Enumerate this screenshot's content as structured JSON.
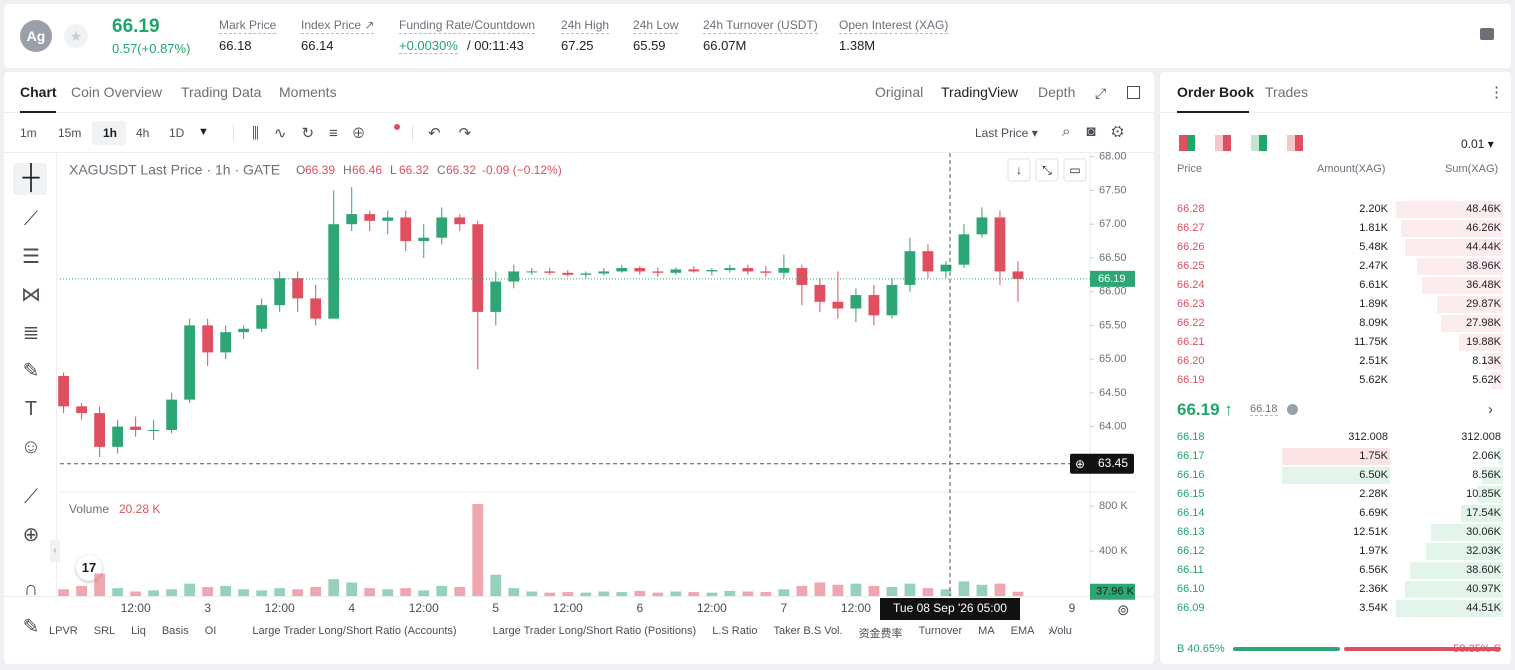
{
  "header": {
    "symbol": "Ag",
    "price": "66.19",
    "change": "0.57(+0.87%)",
    "stats": [
      {
        "label": "Mark Price",
        "value": "66.18"
      },
      {
        "label": "Index Price",
        "value": "66.14"
      },
      {
        "label": "Funding Rate/Countdown",
        "value": "+0.0030%",
        "extra": "/ 00:11:43"
      },
      {
        "label": "24h High",
        "value": "67.25"
      },
      {
        "label": "24h Low",
        "value": "65.59"
      },
      {
        "label": "24h Turnover (USDT)",
        "value": "66.07M"
      },
      {
        "label": "Open Interest (XAG)",
        "value": "1.38M"
      }
    ]
  },
  "tabs": [
    "Chart",
    "Coin Overview",
    "Trading Data",
    "Moments"
  ],
  "view_tabs": [
    "Original",
    "TradingView",
    "Depth"
  ],
  "toolbar": {
    "intervals": [
      "1m",
      "15m",
      "1h",
      "4h",
      "1D"
    ],
    "price_type": "Last Price"
  },
  "indicators": [
    "LPVR",
    "SRL",
    "Liq",
    "Basis",
    "OI",
    "Large Trader Long/Short Ratio (Accounts)",
    "Large Trader Long/Short Ratio (Positions)",
    "L.S Ratio",
    "Taker B.S Vol.",
    "资金费率",
    "Turnover",
    "MA",
    "EMA",
    "Volu"
  ],
  "chart_data": {
    "type": "candlestick",
    "title": "XAGUSDT Last Price · 1h · GATE",
    "legend": [
      {
        "key": "O",
        "value": "66.39"
      },
      {
        "key": "H",
        "value": "66.46"
      },
      {
        "key": "L",
        "value": "66.32"
      },
      {
        "key": "C",
        "value": "66.32"
      }
    ],
    "legend_change": "-0.09 (−0.12%)",
    "up_color": "#2ea574",
    "down_color": "#e04f5f",
    "open": [
      64.75,
      64.3,
      64.2,
      63.7,
      64.0,
      63.95,
      63.95,
      64.4,
      65.5,
      65.1,
      65.4,
      65.45,
      65.8,
      66.2,
      65.9,
      65.6,
      67.0,
      67.15,
      67.05,
      67.1,
      66.75,
      66.8,
      67.1,
      67.0,
      65.7,
      66.15,
      66.3,
      66.3,
      66.28,
      66.25,
      66.27,
      66.3,
      66.35,
      66.3,
      66.28,
      66.33,
      66.3,
      66.32,
      66.35,
      66.3,
      66.28,
      66.35,
      66.1,
      65.85,
      65.75,
      65.95,
      65.65,
      66.1,
      66.6,
      66.3,
      66.4,
      66.85,
      67.1,
      66.3
    ],
    "high": [
      64.8,
      64.35,
      64.3,
      64.1,
      64.15,
      64.1,
      64.5,
      65.6,
      65.6,
      65.5,
      65.5,
      65.9,
      66.3,
      66.3,
      66.1,
      67.5,
      67.55,
      67.2,
      67.2,
      67.2,
      67.0,
      67.25,
      67.15,
      67.05,
      66.3,
      66.4,
      66.35,
      66.35,
      66.32,
      66.3,
      66.35,
      66.4,
      66.38,
      66.36,
      66.36,
      66.38,
      66.35,
      66.4,
      66.4,
      66.38,
      66.55,
      66.4,
      66.2,
      66.3,
      66.05,
      66.1,
      66.2,
      66.8,
      66.7,
      66.45,
      67.0,
      67.25,
      67.2,
      66.45
    ],
    "low": [
      64.2,
      64.1,
      63.55,
      63.6,
      63.85,
      63.8,
      63.9,
      64.35,
      64.9,
      65.0,
      65.3,
      65.4,
      65.7,
      65.7,
      65.5,
      65.6,
      66.9,
      66.9,
      66.85,
      66.6,
      66.5,
      66.7,
      66.9,
      64.85,
      65.5,
      66.05,
      66.25,
      66.25,
      66.22,
      66.2,
      66.24,
      66.28,
      66.25,
      66.22,
      66.25,
      66.28,
      66.24,
      66.28,
      66.25,
      66.22,
      66.2,
      65.8,
      65.7,
      65.6,
      65.55,
      65.5,
      65.6,
      66.0,
      66.2,
      66.2,
      66.35,
      66.8,
      66.1,
      65.85
    ],
    "close": [
      64.3,
      64.2,
      63.7,
      64.0,
      63.95,
      63.95,
      64.4,
      65.5,
      65.1,
      65.4,
      65.45,
      65.8,
      66.2,
      65.9,
      65.6,
      67.0,
      67.15,
      67.05,
      67.1,
      66.75,
      66.8,
      67.1,
      67.0,
      65.7,
      66.15,
      66.3,
      66.3,
      66.28,
      66.25,
      66.27,
      66.3,
      66.35,
      66.3,
      66.28,
      66.33,
      66.3,
      66.32,
      66.35,
      66.3,
      66.28,
      66.35,
      66.1,
      65.85,
      65.75,
      65.95,
      65.65,
      66.1,
      66.6,
      66.3,
      66.4,
      66.85,
      67.1,
      66.3,
      66.19
    ],
    "volume": [
      60000,
      90000,
      200000,
      70000,
      40000,
      50000,
      60000,
      110000,
      80000,
      90000,
      60000,
      50000,
      70000,
      60000,
      80000,
      150000,
      120000,
      70000,
      60000,
      70000,
      50000,
      90000,
      80000,
      820000,
      190000,
      70000,
      40000,
      30000,
      35000,
      30000,
      40000,
      35000,
      45000,
      30000,
      40000,
      35000,
      30000,
      45000,
      40000,
      35000,
      60000,
      90000,
      120000,
      100000,
      110000,
      90000,
      80000,
      110000,
      70000,
      60000,
      130000,
      100000,
      110000,
      37960
    ],
    "xlim": [
      -0.2,
      57
    ],
    "xticks": [
      {
        "value": 4,
        "label": "12:00"
      },
      {
        "value": 8,
        "label": "3"
      },
      {
        "value": 12,
        "label": "12:00"
      },
      {
        "value": 16,
        "label": "4"
      },
      {
        "value": 20,
        "label": "12:00"
      },
      {
        "value": 24,
        "label": "5"
      },
      {
        "value": 28,
        "label": "12:00"
      },
      {
        "value": 32,
        "label": "6"
      },
      {
        "value": 36,
        "label": "12:00"
      },
      {
        "value": 40,
        "label": "7"
      },
      {
        "value": 44,
        "label": "12:00"
      },
      {
        "value": 56,
        "label": "9"
      }
    ],
    "ylim": [
      63.06,
      68.1
    ],
    "yticks": [
      {
        "value": 64,
        "label": "64.00"
      },
      {
        "value": 64.5,
        "label": "64.50"
      },
      {
        "value": 65,
        "label": "65.00"
      },
      {
        "value": 65.5,
        "label": "65.50"
      },
      {
        "value": 66,
        "label": "66.00"
      },
      {
        "value": 66.5,
        "label": "66.50"
      },
      {
        "value": 67,
        "label": "67.00"
      },
      {
        "value": 67.5,
        "label": "67.50"
      },
      {
        "value": 68,
        "label": "68.00"
      }
    ],
    "last_price": {
      "value": 66.19,
      "label": "66.19"
    },
    "crosshair": {
      "price": 63.45,
      "time": "Tue 08 Sep '26  05:00"
    },
    "volume_title": "Volume",
    "volume_value": "20.28 K",
    "vlim": [
      0,
      900000
    ],
    "vticks": [
      {
        "value": 400000,
        "label": "400 K"
      },
      {
        "value": 800000,
        "label": "800 K"
      }
    ],
    "last_volume": {
      "value": 37960,
      "label": "37.96 K"
    }
  },
  "orderbook": {
    "tabs": [
      "Order Book",
      "Trades"
    ],
    "precision": "0.01",
    "columns": [
      "Price",
      "Amount(XAG)",
      "Sum(XAG)"
    ],
    "asks": [
      [
        "66.28",
        "2.20K",
        "48.46K"
      ],
      [
        "66.27",
        "1.81K",
        "46.26K"
      ],
      [
        "66.26",
        "5.48K",
        "44.44K"
      ],
      [
        "66.25",
        "2.47K",
        "38.96K"
      ],
      [
        "66.24",
        "6.61K",
        "36.48K"
      ],
      [
        "66.23",
        "1.89K",
        "29.87K"
      ],
      [
        "66.22",
        "8.09K",
        "27.98K"
      ],
      [
        "66.21",
        "11.75K",
        "19.88K"
      ],
      [
        "66.20",
        "2.51K",
        "8.13K"
      ],
      [
        "66.19",
        "5.62K",
        "5.62K"
      ]
    ],
    "mid_price": "66.19",
    "mark_price": "66.18",
    "bids": [
      [
        "66.18",
        "312.008",
        "312.008"
      ],
      [
        "66.17",
        "1.75K",
        "2.06K"
      ],
      [
        "66.16",
        "6.50K",
        "8.56K"
      ],
      [
        "66.15",
        "2.28K",
        "10.85K"
      ],
      [
        "66.14",
        "6.69K",
        "17.54K"
      ],
      [
        "66.13",
        "12.51K",
        "30.06K"
      ],
      [
        "66.12",
        "1.97K",
        "32.03K"
      ],
      [
        "66.11",
        "6.56K",
        "38.60K"
      ],
      [
        "66.10",
        "2.36K",
        "40.97K"
      ],
      [
        "66.09",
        "3.54K",
        "44.51K"
      ]
    ],
    "buy_letter": "B",
    "sell_letter": "S",
    "buy_ratio": {
      "value": 40.65,
      "label": "40.65%"
    },
    "sell_ratio": {
      "value": 59.35,
      "label": "59.35%"
    }
  }
}
